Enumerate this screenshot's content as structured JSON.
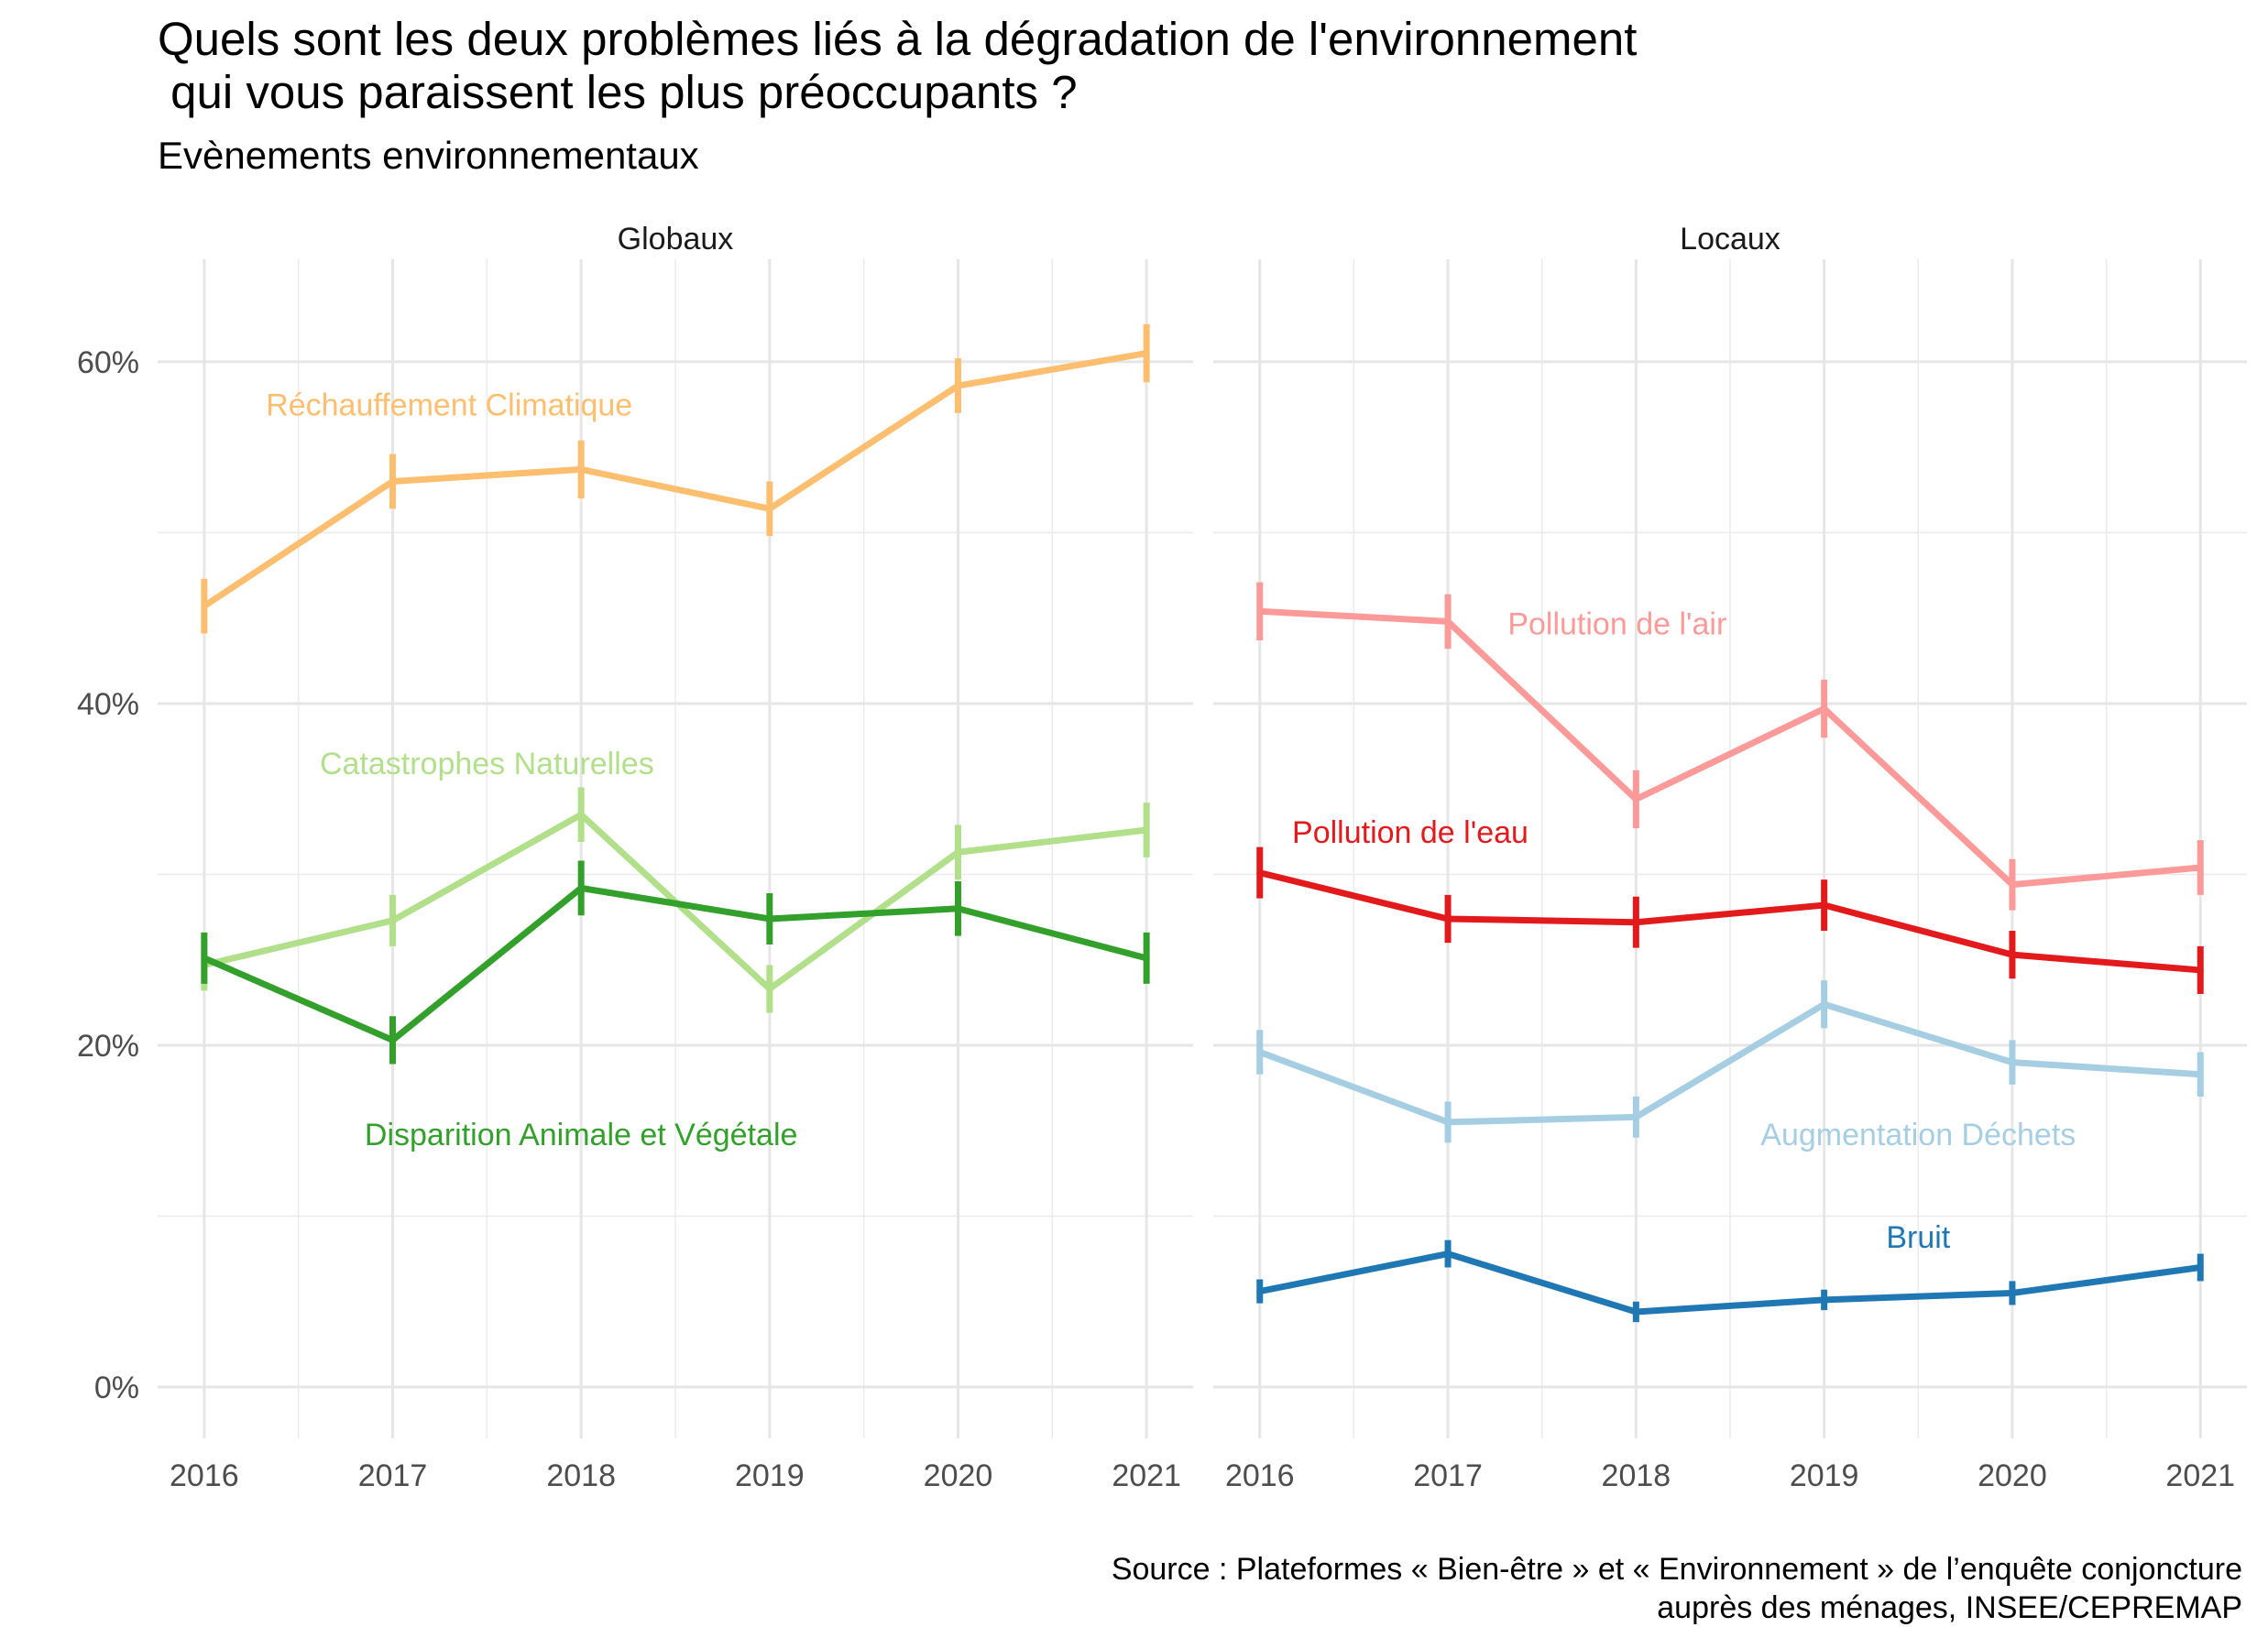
{
  "title": "Quels sont les deux problèmes liés à la dégradation de l'environnement\n qui vous paraissent les plus préoccupants ?",
  "subtitle": "Evènements environnementaux",
  "caption_lines": [
    "Source : Plateformes « Bien-être » et « Environnement » de l’enquête conjoncture",
    "auprès des ménages, INSEE/CEPREMAP"
  ],
  "chart_data": {
    "type": "line",
    "x": [
      2016,
      2017,
      2018,
      2019,
      2020,
      2021
    ],
    "x_tick_labels": [
      "2016",
      "2017",
      "2018",
      "2019",
      "2020",
      "2021"
    ],
    "ylim": [
      -3,
      66
    ],
    "y_ticks": [
      0,
      20,
      40,
      60
    ],
    "y_tick_labels": [
      "0%",
      "20%",
      "40%",
      "60%"
    ],
    "grid": true,
    "error_bars": true,
    "panels": [
      {
        "name": "Globaux",
        "series": [
          {
            "name": "Réchauffement Climatique",
            "color": "#FDBF6F",
            "values": [
              45.7,
              53.0,
              53.7,
              51.4,
              58.6,
              60.5
            ],
            "errors": [
              1.6,
              1.6,
              1.7,
              1.6,
              1.6,
              1.7
            ],
            "label_at": [
              2017.3,
              57.5
            ]
          },
          {
            "name": "Catastrophes Naturelles",
            "color": "#B2DF8A",
            "values": [
              24.7,
              27.3,
              33.5,
              23.3,
              31.3,
              32.6
            ],
            "errors": [
              1.5,
              1.5,
              1.6,
              1.4,
              1.6,
              1.6
            ],
            "label_at": [
              2017.5,
              36.5
            ]
          },
          {
            "name": "Disparition Animale et Végétale",
            "color": "#33A02C",
            "values": [
              25.1,
              20.3,
              29.2,
              27.4,
              28.0,
              25.1
            ],
            "errors": [
              1.5,
              1.4,
              1.6,
              1.5,
              1.6,
              1.5
            ],
            "label_at": [
              2018.0,
              14.8
            ]
          }
        ]
      },
      {
        "name": "Locaux",
        "series": [
          {
            "name": "Pollution de l'air",
            "color": "#FB9A99",
            "values": [
              45.4,
              44.8,
              34.4,
              39.7,
              29.4,
              30.4
            ],
            "errors": [
              1.7,
              1.6,
              1.7,
              1.7,
              1.5,
              1.6
            ],
            "label_at": [
              2017.9,
              44.7
            ]
          },
          {
            "name": "Pollution de l'eau",
            "color": "#E31A1C",
            "values": [
              30.1,
              27.4,
              27.2,
              28.2,
              25.3,
              24.4
            ],
            "errors": [
              1.5,
              1.4,
              1.5,
              1.5,
              1.4,
              1.4
            ],
            "label_at": [
              2016.8,
              32.5
            ]
          },
          {
            "name": "Augmentation Déchets",
            "color": "#A6CEE3",
            "values": [
              19.6,
              15.5,
              15.8,
              22.4,
              19.0,
              18.3
            ],
            "errors": [
              1.3,
              1.2,
              1.2,
              1.4,
              1.3,
              1.3
            ],
            "label_at": [
              2019.5,
              14.8
            ]
          },
          {
            "name": "Bruit",
            "color": "#1F78B4",
            "values": [
              5.6,
              7.8,
              4.4,
              5.1,
              5.5,
              7.0
            ],
            "errors": [
              0.7,
              0.8,
              0.6,
              0.6,
              0.7,
              0.8
            ],
            "label_at": [
              2019.5,
              8.8
            ]
          }
        ]
      }
    ]
  }
}
